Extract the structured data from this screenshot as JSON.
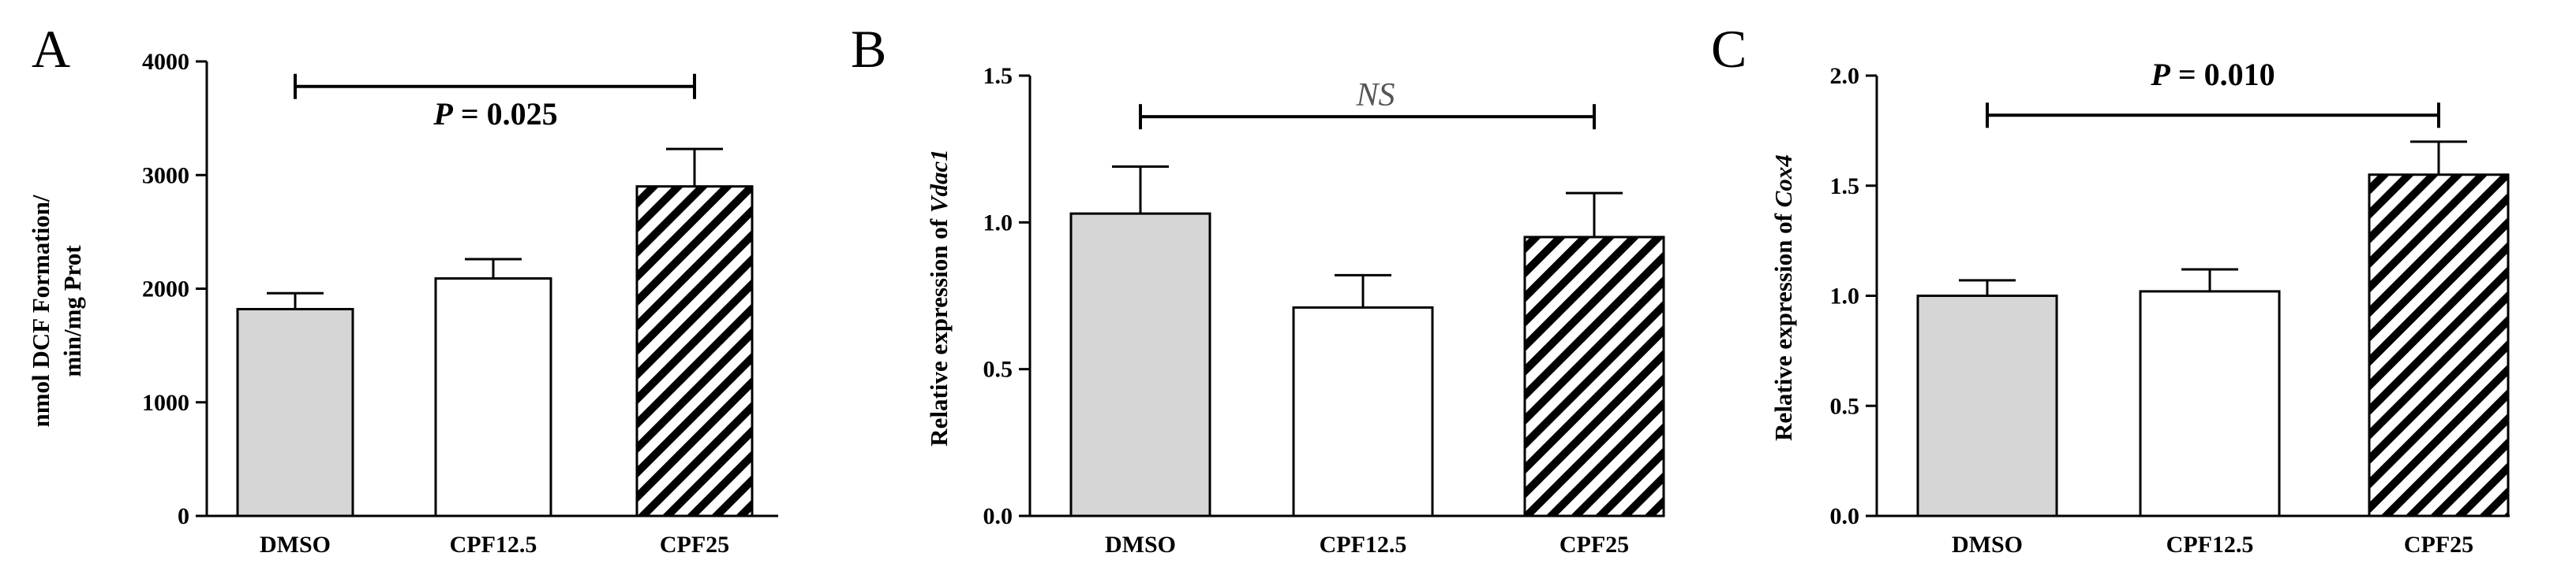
{
  "chart_data": [
    {
      "type": "bar",
      "panel": "A",
      "categories": [
        "DMSO",
        "CPF12.5",
        "CPF25"
      ],
      "values": [
        1820,
        2090,
        2900
      ],
      "errors": [
        140,
        170,
        330
      ],
      "ylabel_lines": [
        "nmol DCF Formation/",
        "min/mg Prot"
      ],
      "ylim": [
        0,
        4000
      ],
      "yticks": [
        0,
        1000,
        2000,
        3000,
        4000
      ],
      "ytick_labels": [
        "0",
        "1000",
        "2000",
        "3000",
        "4000"
      ],
      "bar_fills": [
        "gray",
        "white",
        "hatched"
      ],
      "significance": {
        "label_prefix": "P",
        "label_suffix": " = 0.025",
        "from": 0,
        "to": 2,
        "y": 3780
      }
    },
    {
      "type": "bar",
      "panel": "B",
      "categories": [
        "DMSO",
        "CPF12.5",
        "CPF25"
      ],
      "values": [
        1.03,
        0.71,
        0.95
      ],
      "errors": [
        0.16,
        0.11,
        0.15
      ],
      "ylabel_prefix": "Relative expression of ",
      "ylabel_gene": "Vdac1",
      "ylim": [
        0,
        1.5
      ],
      "yticks": [
        0,
        0.5,
        1.0,
        1.5
      ],
      "ytick_labels": [
        "0.0",
        "0.5",
        "1.0",
        "1.5"
      ],
      "bar_fills": [
        "gray",
        "white",
        "hatched"
      ],
      "significance": {
        "label": "NS",
        "from": 0,
        "to": 2,
        "y": 1.36
      }
    },
    {
      "type": "bar",
      "panel": "C",
      "categories": [
        "DMSO",
        "CPF12.5",
        "CPF25"
      ],
      "values": [
        1.0,
        1.02,
        1.55
      ],
      "errors": [
        0.07,
        0.1,
        0.15
      ],
      "ylabel_prefix": "Relative expression of ",
      "ylabel_gene": "Cox4",
      "ylim": [
        0,
        2.0
      ],
      "yticks": [
        0,
        0.5,
        1.0,
        1.5,
        2.0
      ],
      "ytick_labels": [
        "0.0",
        "0.5",
        "1.0",
        "1.5",
        "2.0"
      ],
      "bar_fills": [
        "gray",
        "white",
        "hatched"
      ],
      "significance": {
        "label_prefix": "P",
        "label_suffix": " = 0.010",
        "from": 0,
        "to": 2,
        "y": 1.82
      }
    }
  ],
  "colors": {
    "bar_gray": "#d6d6d6",
    "bar_white": "#ffffff",
    "stroke": "#000000"
  }
}
